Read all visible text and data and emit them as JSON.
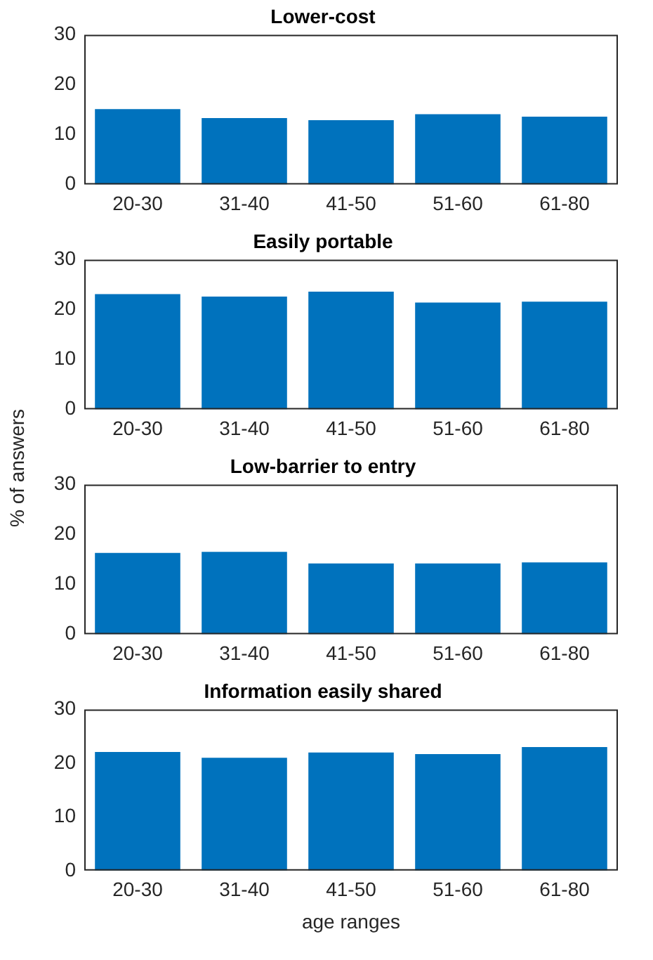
{
  "chart_data": [
    {
      "type": "bar",
      "title": "Lower-cost",
      "categories": [
        "20-30",
        "31-40",
        "41-50",
        "51-60",
        "61-80"
      ],
      "values": [
        15.1,
        13.3,
        12.9,
        14.1,
        13.6
      ],
      "color": "#0072bd",
      "ylim": [
        0,
        30
      ],
      "yticks": [
        0,
        10,
        20,
        30
      ],
      "grid": false
    },
    {
      "type": "bar",
      "title": "Easily portable",
      "categories": [
        "20-30",
        "31-40",
        "41-50",
        "51-60",
        "61-80"
      ],
      "values": [
        23.1,
        22.6,
        23.6,
        21.4,
        21.6
      ],
      "color": "#0072bd",
      "ylim": [
        0,
        30
      ],
      "yticks": [
        0,
        10,
        20,
        30
      ],
      "grid": false,
      "ylabel": "% of answers"
    },
    {
      "type": "bar",
      "title": "Low-barrier to entry",
      "categories": [
        "20-30",
        "31-40",
        "41-50",
        "51-60",
        "61-80"
      ],
      "values": [
        16.3,
        16.5,
        14.2,
        14.2,
        14.4
      ],
      "color": "#0072bd",
      "ylim": [
        0,
        30
      ],
      "yticks": [
        0,
        10,
        20,
        30
      ],
      "grid": false
    },
    {
      "type": "bar",
      "title": "Information easily shared",
      "categories": [
        "20-30",
        "31-40",
        "41-50",
        "51-60",
        "61-80"
      ],
      "values": [
        22.1,
        21.0,
        22.0,
        21.7,
        23.0
      ],
      "color": "#0072bd",
      "ylim": [
        0,
        30
      ],
      "yticks": [
        0,
        10,
        20,
        30
      ],
      "grid": false,
      "xlabel": "age ranges"
    }
  ]
}
